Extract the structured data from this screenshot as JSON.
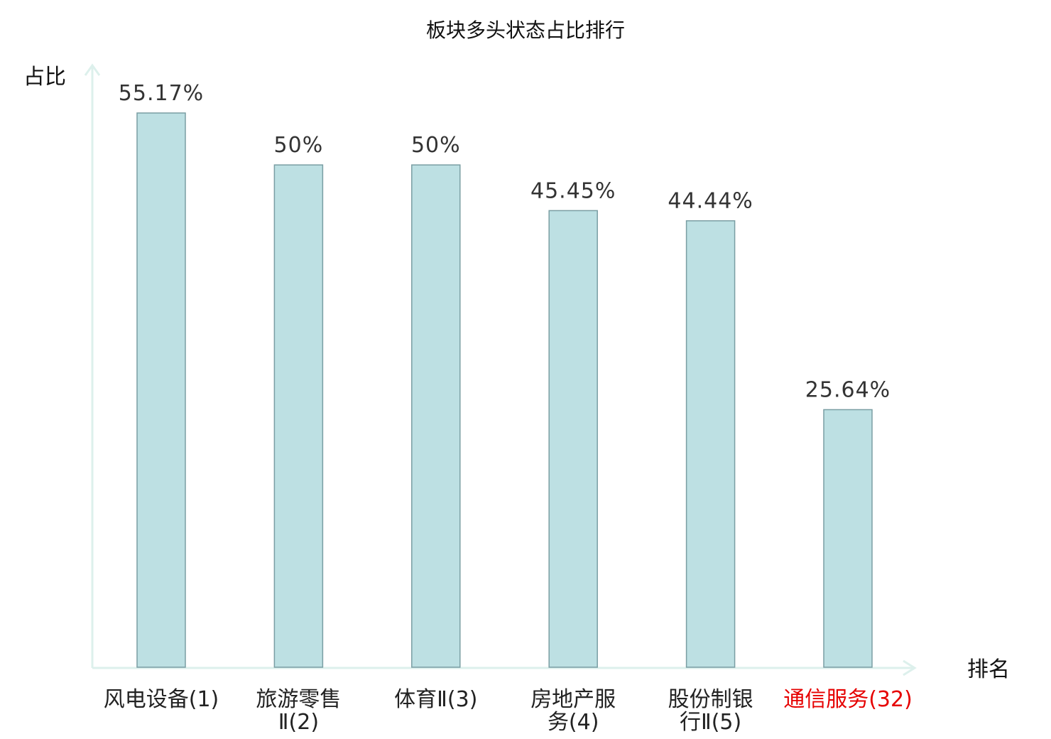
{
  "chart_data": {
    "type": "bar",
    "title": "板块多头状态占比排行",
    "ylabel": "占比",
    "xlabel": "排名",
    "ylim": [
      0,
      60
    ],
    "grid": false,
    "categories": [
      {
        "lines": [
          "风电设备(1)"
        ],
        "highlight": false
      },
      {
        "lines": [
          "旅游零售",
          "Ⅱ(2)"
        ],
        "highlight": false
      },
      {
        "lines": [
          "体育Ⅱ(3)"
        ],
        "highlight": false
      },
      {
        "lines": [
          "房地产服",
          "务(4)"
        ],
        "highlight": false
      },
      {
        "lines": [
          "股份制银",
          "行Ⅱ(5)"
        ],
        "highlight": false
      },
      {
        "lines": [
          "通信服务(32)"
        ],
        "highlight": true
      }
    ],
    "values": [
      55.17,
      50,
      50,
      45.45,
      44.44,
      25.64
    ],
    "value_labels": [
      "55.17%",
      "50%",
      "50%",
      "45.45%",
      "44.44%",
      "25.64%"
    ]
  },
  "colors": {
    "bar_fill": "#bde0e3",
    "bar_stroke": "#7a9ea3",
    "axis": "#ddf0ec",
    "highlight_text": "#e60000"
  }
}
